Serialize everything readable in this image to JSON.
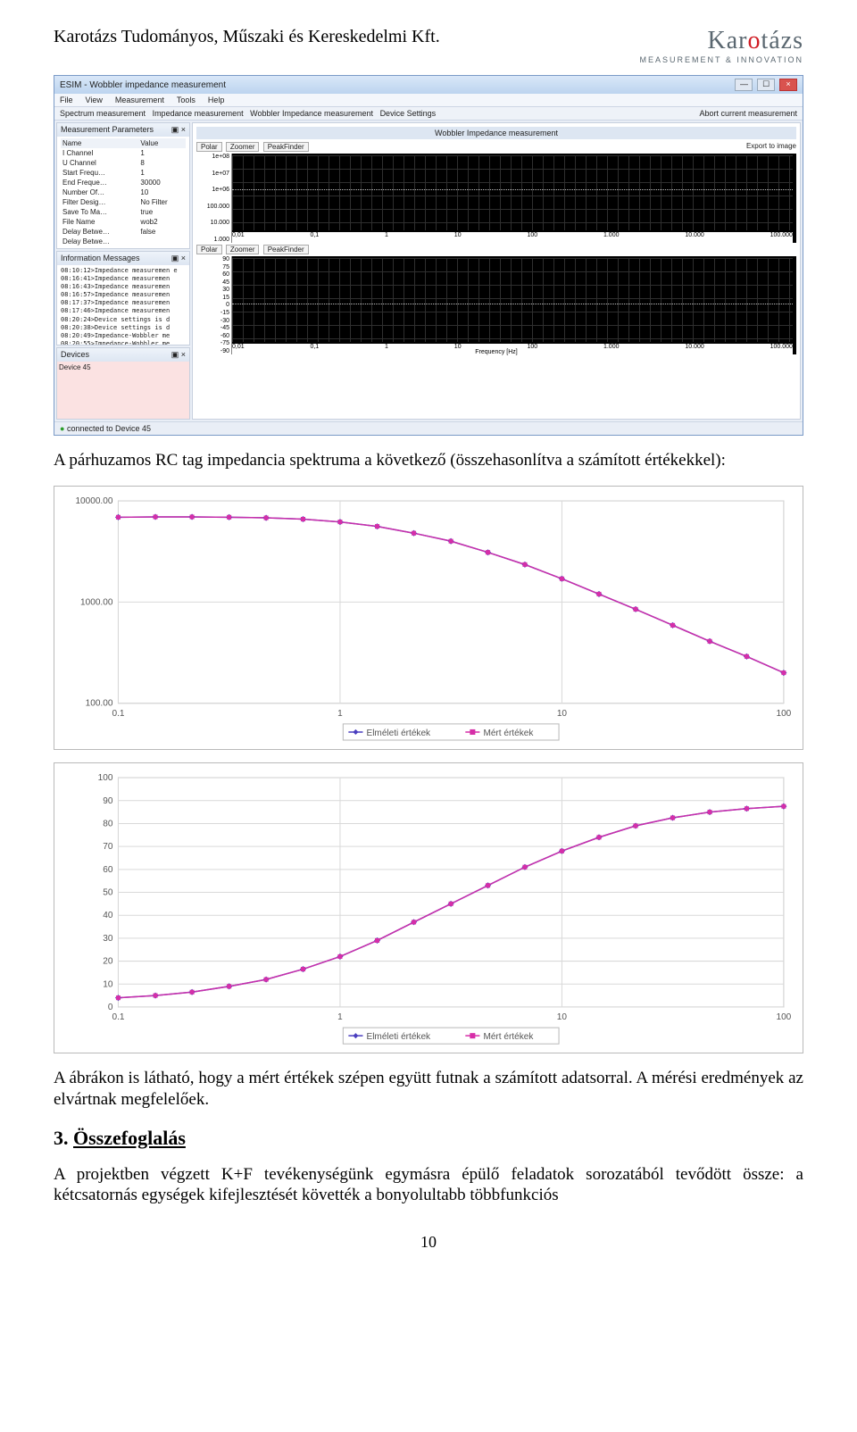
{
  "header": {
    "company": "Karotázs Tudományos, Műszaki és Kereskedelmi Kft.",
    "logo_main_pre": "Kar",
    "logo_main_accent": "o",
    "logo_main_post": "tázs",
    "logo_sub": "MEASUREMENT & INNOVATION"
  },
  "app": {
    "title": "ESIM - Wobbler impedance measurement",
    "menubar": [
      "File",
      "View",
      "Measurement",
      "Tools",
      "Help"
    ],
    "tabs_left": [
      "Spectrum measurement",
      "Impedance measurement",
      "Wobbler Impedance measurement",
      "Device Settings"
    ],
    "tabs_right": "Abort current measurement",
    "panel_params_title": "Measurement Parameters",
    "panel_params_cols": [
      "Name",
      "Value"
    ],
    "params": [
      [
        "I Channel",
        "1"
      ],
      [
        "U Channel",
        "8"
      ],
      [
        "Start Frequ…",
        "1"
      ],
      [
        "End Freque…",
        "30000"
      ],
      [
        "Number Of…",
        "10"
      ],
      [
        "Filter Desig…",
        "No Filter"
      ],
      [
        "Save To Ma…",
        "true"
      ],
      [
        "File Name",
        "wob2"
      ],
      [
        "Delay Betwe…",
        "false"
      ],
      [
        "Delay Betwe…",
        ""
      ]
    ],
    "panel_info_title": "Information Messages",
    "info_lines": [
      "08:10:12>Impedance measuremen e",
      "08:16:41>Impedance measuremen",
      "08:16:43>Impedance measuremen",
      "08:16:57>Impedance measuremen",
      "08:17:37>Impedance measuremen",
      "08:17:46>Impedance measuremen",
      "08:20:24>Device settings is d",
      "08:20:38>Device settings is d",
      "08:20:49>Impedance-Wobbler me",
      "08:20:55>Impedance-Wobbler me",
      "08:20:56>Impedance-Wobbler me"
    ],
    "panel_devices_title": "Devices",
    "device_item": "Device 45",
    "wobbler_title": "Wobbler Impedance measurement",
    "toolbar_btns": [
      "Polar",
      "Zoomer",
      "PeakFinder"
    ],
    "toolbar_right": "Export to image",
    "top_plot": {
      "yticks": [
        "1e+08",
        "1e+07",
        "1e+06",
        "100.000",
        "10.000",
        "1.000"
      ],
      "xticks": [
        "0,01",
        "0,1",
        "1",
        "10",
        "100",
        "1.000",
        "10.000",
        "100.000"
      ]
    },
    "bottom_plot": {
      "yticks": [
        "90",
        "75",
        "60",
        "45",
        "30",
        "15",
        "0",
        "-15",
        "-30",
        "-45",
        "-60",
        "-75",
        "-90"
      ],
      "xticks": [
        "0,01",
        "0,1",
        "1",
        "10",
        "100",
        "1.000",
        "10.000",
        "100.000"
      ],
      "xlabel": "Frequency [Hz]"
    },
    "status": "connected to Device 45"
  },
  "text": {
    "para1": "A párhuzamos RC tag impedancia spektruma a következő (összehasonlítva a számított értékekkel):",
    "para2": "A ábrákon is látható, hogy a mért értékek szépen együtt futnak a számított adatsorral. A mérési eredmények az elvártnak megfelelőek.",
    "h2_num": "3. ",
    "h2_txt": "Összefoglalás",
    "para3": "A projektben végzett K+F tevékenységünk egymásra épülő feladatok sorozatából tevődött össze: a kétcsatornás egységek kifejlesztését követték a bonyolultabb többfunkciós",
    "page_num": "10"
  },
  "chart1": {
    "type": "line",
    "series": [
      {
        "name": "Elméleti értékek",
        "color": "#4a3fbf",
        "marker": "diamond"
      },
      {
        "name": "Mért értékek",
        "color": "#d62ea8",
        "marker": "square"
      }
    ],
    "yticks": [
      "10000.00",
      "1000.00",
      "100.00"
    ],
    "ylim_log": [
      100,
      10000
    ],
    "xticks": [
      "0.1",
      "1",
      "10",
      "100"
    ],
    "xlim_log": [
      0.1,
      100
    ],
    "background": "#ffffff",
    "grid_color": "#d9d9d9",
    "font_size": 10,
    "x_log": [
      0.1,
      0.147,
      0.215,
      0.316,
      0.464,
      0.681,
      1.0,
      1.47,
      2.15,
      3.16,
      4.64,
      6.81,
      10.0,
      14.7,
      21.5,
      31.6,
      46.4,
      68.1,
      100.0
    ],
    "y_values": [
      6900,
      6950,
      6950,
      6900,
      6800,
      6600,
      6200,
      5600,
      4800,
      4000,
      3100,
      2350,
      1700,
      1200,
      850,
      590,
      410,
      290,
      200
    ]
  },
  "chart2": {
    "type": "line",
    "series": [
      {
        "name": "Elméleti értékek",
        "color": "#4a3fbf",
        "marker": "diamond"
      },
      {
        "name": "Mért értékek",
        "color": "#d62ea8",
        "marker": "square"
      }
    ],
    "yticks": [
      "100",
      "90",
      "80",
      "70",
      "60",
      "50",
      "40",
      "30",
      "20",
      "10",
      "0"
    ],
    "ylim": [
      0,
      100
    ],
    "xticks": [
      "0.1",
      "1",
      "10",
      "100"
    ],
    "xlim_log": [
      0.1,
      100
    ],
    "background": "#ffffff",
    "grid_color": "#d9d9d9",
    "font_size": 10,
    "x_log": [
      0.1,
      0.147,
      0.215,
      0.316,
      0.464,
      0.681,
      1.0,
      1.47,
      2.15,
      3.16,
      4.64,
      6.81,
      10.0,
      14.7,
      21.5,
      31.6,
      46.4,
      68.1,
      100.0
    ],
    "y_values": [
      4,
      5,
      6.5,
      9,
      12,
      16.5,
      22,
      29,
      37,
      45,
      53,
      61,
      68,
      74,
      79,
      82.5,
      85,
      86.5,
      87.5
    ]
  },
  "legend_labels": [
    "Elméleti értékek",
    "Mért értékek"
  ]
}
